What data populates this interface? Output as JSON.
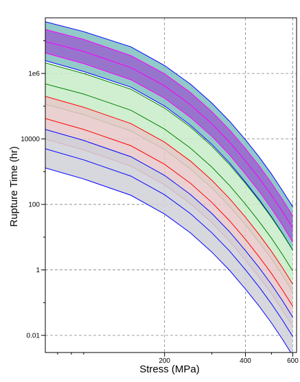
{
  "chart_data": {
    "type": "area",
    "xlabel": "Stress (MPa)",
    "ylabel": "Rupture Time (hr)",
    "x_scale": "log",
    "y_scale": "log",
    "xlim": [
      72,
      620
    ],
    "ylim": [
      0.003,
      50000000
    ],
    "x_ticks": [
      200,
      400,
      600
    ],
    "x_tick_labels": [
      "200",
      "400",
      "600"
    ],
    "y_ticks": [
      0.01,
      1,
      100,
      10000,
      1000000
    ],
    "y_tick_labels": [
      "0.01",
      "1",
      "100",
      "10000",
      "1e6"
    ],
    "grid": true,
    "grid_style": "dashed",
    "legend": "none",
    "x": [
      72,
      100,
      150,
      200,
      250,
      300,
      350,
      400,
      450,
      500,
      550,
      600
    ],
    "series": [
      {
        "color": "#0000ff",
        "fill": "#7fbfbf",
        "center": [
          9400000,
          4700000,
          1500000,
          420000,
          110000,
          29000,
          7800,
          2150,
          640,
          190,
          60,
          19
        ],
        "upper": [
          38000000,
          19000000,
          6500000,
          1750000,
          470000,
          125000,
          34000,
          9500,
          2800,
          850,
          260,
          85
        ],
        "lower": [
          2450000,
          1150000,
          380000,
          101000,
          26000,
          6800,
          1800,
          480,
          140,
          42,
          13,
          4
        ]
      },
      {
        "color": "#ff00ff",
        "fill": "#9966cc",
        "center": [
          9400000,
          4700000,
          1500000,
          420000,
          110000,
          29000,
          7800,
          2150,
          640,
          190,
          60,
          19
        ],
        "upper": [
          22000000,
          11000000,
          3500000,
          980000,
          260000,
          68000,
          18500,
          5100,
          1500,
          450,
          140,
          45
        ],
        "lower": [
          4200000,
          2000000,
          640000,
          175000,
          45000,
          12000,
          3200,
          850,
          250,
          75,
          23,
          7
        ]
      },
      {
        "color": "#008000",
        "fill": "#c8ecc8",
        "center": [
          480000,
          235000,
          75000,
          20000,
          5200,
          1380,
          370,
          102,
          30,
          9.3,
          2.9,
          0.93
        ],
        "upper": [
          2100000,
          1000000,
          330000,
          88000,
          23000,
          6000,
          1600,
          440,
          130,
          40,
          12.5,
          4
        ],
        "lower": [
          115000,
          55000,
          17500,
          4700,
          1200,
          320,
          86,
          24,
          7,
          2.2,
          0.68,
          0.21
        ]
      },
      {
        "color": "#ff0000",
        "fill": "#e6c8c8",
        "center": [
          42000,
          19500,
          6200,
          1680,
          440,
          115,
          31,
          8.6,
          2.5,
          0.78,
          0.24,
          0.078
        ],
        "upper": [
          200000,
          93000,
          29500,
          8000,
          2100,
          550,
          148,
          41,
          12,
          3.7,
          1.15,
          0.37
        ],
        "lower": [
          10000,
          4650,
          1480,
          400,
          105,
          28,
          7.4,
          2,
          0.6,
          0.19,
          0.058,
          0.019
        ]
      },
      {
        "color": "#0000ff",
        "fill": "#d0d0d8",
        "center": [
          5000,
          2300,
          730,
          198,
          52,
          13.6,
          3.7,
          1.01,
          0.3,
          0.092,
          0.029,
          0.0092
        ],
        "upper": [
          19500,
          9000,
          2850,
          770,
          200,
          53,
          14.3,
          3.9,
          1.17,
          0.36,
          0.113,
          0.036
        ],
        "lower": [
          1300,
          600,
          190,
          51,
          13.4,
          3.5,
          0.95,
          0.26,
          0.078,
          0.024,
          0.0075,
          0.0024
        ]
      }
    ]
  }
}
